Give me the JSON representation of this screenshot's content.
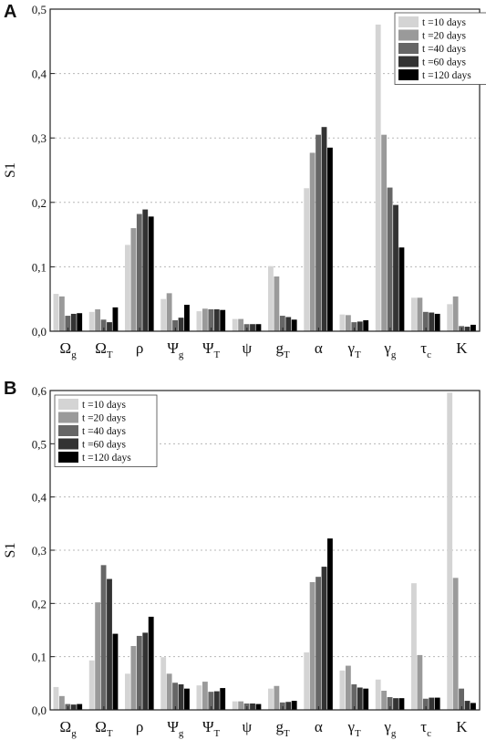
{
  "chart_data": [
    {
      "type": "bar",
      "panel_label": "A",
      "ylabel": "S1",
      "xlabel": "",
      "ylim": [
        0,
        0.5
      ],
      "yticks": [
        "0,0",
        "0,1",
        "0,2",
        "0,3",
        "0,4",
        "0,5"
      ],
      "grid": "horizontal dotted",
      "legend_position": "top-right",
      "categories": [
        {
          "main": "Ω",
          "sub": "g"
        },
        {
          "main": "Ω",
          "sub": "T"
        },
        {
          "main": "ρ",
          "sub": ""
        },
        {
          "main": "Ψ",
          "sub": "g"
        },
        {
          "main": "Ψ",
          "sub": "T"
        },
        {
          "main": "ψ",
          "sub": ""
        },
        {
          "main": "g",
          "sub": "T"
        },
        {
          "main": "α",
          "sub": ""
        },
        {
          "main": "γ",
          "sub": "T"
        },
        {
          "main": "γ",
          "sub": "g"
        },
        {
          "main": "τ",
          "sub": "c"
        },
        {
          "main": "K",
          "sub": ""
        }
      ],
      "series": [
        {
          "name": "t =10 days",
          "color": "#d4d4d4",
          "values": [
            0.058,
            0.03,
            0.134,
            0.05,
            0.031,
            0.019,
            0.101,
            0.222,
            0.026,
            0.476,
            0.052,
            0.042
          ]
        },
        {
          "name": "t =20 days",
          "color": "#9a9a9a",
          "values": [
            0.054,
            0.034,
            0.16,
            0.059,
            0.035,
            0.019,
            0.085,
            0.277,
            0.025,
            0.305,
            0.052,
            0.054
          ]
        },
        {
          "name": "t =40 days",
          "color": "#666666",
          "values": [
            0.024,
            0.018,
            0.182,
            0.017,
            0.034,
            0.011,
            0.024,
            0.305,
            0.014,
            0.223,
            0.03,
            0.008
          ]
        },
        {
          "name": "t =60 days",
          "color": "#333333",
          "values": [
            0.027,
            0.014,
            0.189,
            0.021,
            0.034,
            0.011,
            0.022,
            0.317,
            0.015,
            0.196,
            0.029,
            0.007
          ]
        },
        {
          "name": "t =120 days",
          "color": "#000000",
          "values": [
            0.028,
            0.037,
            0.178,
            0.041,
            0.033,
            0.011,
            0.018,
            0.285,
            0.017,
            0.13,
            0.027,
            0.01
          ]
        }
      ]
    },
    {
      "type": "bar",
      "panel_label": "B",
      "ylabel": "S1",
      "xlabel": "",
      "ylim": [
        0,
        0.6
      ],
      "yticks": [
        "0,0",
        "0,1",
        "0,2",
        "0,3",
        "0,4",
        "0,5",
        "0,6"
      ],
      "grid": "horizontal dotted",
      "legend_position": "top-left",
      "categories": [
        {
          "main": "Ω",
          "sub": "g"
        },
        {
          "main": "Ω",
          "sub": "T"
        },
        {
          "main": "ρ",
          "sub": ""
        },
        {
          "main": "Ψ",
          "sub": "g"
        },
        {
          "main": "Ψ",
          "sub": "T"
        },
        {
          "main": "ψ",
          "sub": ""
        },
        {
          "main": "g",
          "sub": "T"
        },
        {
          "main": "α",
          "sub": ""
        },
        {
          "main": "γ",
          "sub": "T"
        },
        {
          "main": "γ",
          "sub": "g"
        },
        {
          "main": "τ",
          "sub": "c"
        },
        {
          "main": "K",
          "sub": ""
        }
      ],
      "series": [
        {
          "name": "t =10 days",
          "color": "#d4d4d4",
          "values": [
            0.043,
            0.093,
            0.068,
            0.099,
            0.046,
            0.016,
            0.04,
            0.108,
            0.074,
            0.057,
            0.238,
            0.596
          ]
        },
        {
          "name": "t =20 days",
          "color": "#9a9a9a",
          "values": [
            0.026,
            0.202,
            0.12,
            0.068,
            0.053,
            0.016,
            0.045,
            0.24,
            0.083,
            0.036,
            0.103,
            0.248
          ]
        },
        {
          "name": "t =40 days",
          "color": "#666666",
          "values": [
            0.011,
            0.272,
            0.139,
            0.051,
            0.034,
            0.012,
            0.014,
            0.25,
            0.048,
            0.024,
            0.021,
            0.04
          ]
        },
        {
          "name": "t =60 days",
          "color": "#333333",
          "values": [
            0.01,
            0.246,
            0.145,
            0.048,
            0.035,
            0.012,
            0.015,
            0.269,
            0.042,
            0.022,
            0.023,
            0.017
          ]
        },
        {
          "name": "t =120 days",
          "color": "#000000",
          "values": [
            0.011,
            0.143,
            0.175,
            0.04,
            0.041,
            0.011,
            0.017,
            0.322,
            0.04,
            0.022,
            0.023,
            0.013
          ]
        }
      ]
    }
  ]
}
